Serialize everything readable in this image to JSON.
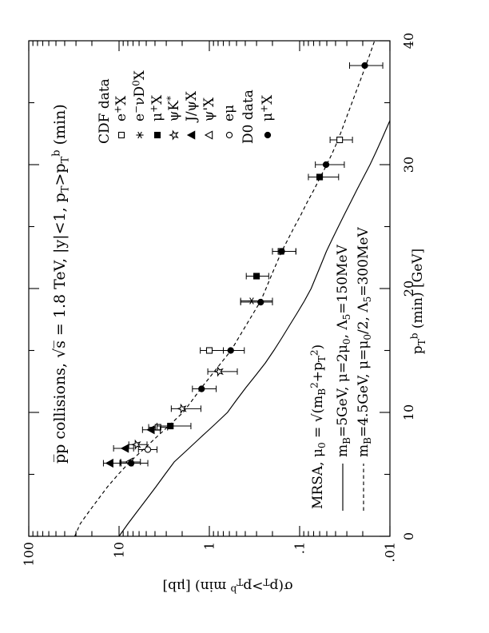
{
  "page": {
    "background": "#ffffff",
    "ink": "#000000"
  },
  "title_segs": [
    {
      "t": "p̅p collisions,  √s̅ = 1.8 TeV,  |y|<1,  p"
    },
    {
      "t": "T",
      "s": "sub"
    },
    {
      "t": ">p"
    },
    {
      "t": "T",
      "s": "sub"
    },
    {
      "t": "b",
      "s": "sup"
    },
    {
      "t": " (min)"
    }
  ],
  "axes": {
    "x_label_segs": [
      {
        "t": "p"
      },
      {
        "t": "T",
        "s": "sub"
      },
      {
        "t": "b",
        "s": "sup"
      },
      {
        "t": " (min) [GeV]"
      }
    ],
    "y_label_segs": [
      {
        "t": "σ(p"
      },
      {
        "t": "T",
        "s": "sub"
      },
      {
        "t": ">p"
      },
      {
        "t": "T",
        "s": "sub"
      },
      {
        "t": "b",
        "s": "sup"
      },
      {
        "t": " min)  [μb]"
      }
    ]
  },
  "legend_cdf": {
    "header": "CDF data",
    "items": [
      {
        "sym": "open-square",
        "segs": [
          {
            "t": "e"
          },
          {
            "t": "+",
            "s": "sup"
          },
          {
            "t": "X"
          }
        ]
      },
      {
        "sym": "asterisk",
        "segs": [
          {
            "t": "e"
          },
          {
            "t": "−",
            "s": "sup"
          },
          {
            "t": "νD"
          },
          {
            "t": "0",
            "s": "sup"
          },
          {
            "t": "X"
          }
        ]
      },
      {
        "sym": "filled-square",
        "segs": [
          {
            "t": "μ"
          },
          {
            "t": "+",
            "s": "sup"
          },
          {
            "t": "X"
          }
        ]
      },
      {
        "sym": "open-star",
        "segs": [
          {
            "t": "ψK"
          },
          {
            "t": "*",
            "s": "sup"
          }
        ]
      },
      {
        "sym": "filled-triangle",
        "segs": [
          {
            "t": "J/ψX"
          }
        ]
      },
      {
        "sym": "open-triangle",
        "segs": [
          {
            "t": "ψ'X"
          }
        ]
      },
      {
        "sym": "open-circle",
        "segs": [
          {
            "t": "eμ"
          }
        ]
      }
    ]
  },
  "legend_d0": {
    "header": "D0 data",
    "items": [
      {
        "sym": "filled-circle",
        "segs": [
          {
            "t": "μ"
          },
          {
            "t": "+",
            "s": "sup"
          },
          {
            "t": "X"
          }
        ]
      }
    ]
  },
  "theory": {
    "line1_segs": [
      {
        "t": "MRSA,  μ"
      },
      {
        "t": "0",
        "s": "sub"
      },
      {
        "t": " = √(m"
      },
      {
        "t": "B",
        "s": "sub"
      },
      {
        "t": "2",
        "s": "sup"
      },
      {
        "t": "+p"
      },
      {
        "t": "T",
        "s": "sub"
      },
      {
        "t": "2",
        "s": "sup"
      },
      {
        "t": ")"
      }
    ],
    "entries": [
      {
        "style": "solid",
        "segs": [
          {
            "t": "m"
          },
          {
            "t": "B",
            "s": "sub"
          },
          {
            "t": "=5GeV, μ=2μ"
          },
          {
            "t": "0",
            "s": "sub"
          },
          {
            "t": ", Λ"
          },
          {
            "t": "5",
            "s": "sub"
          },
          {
            "t": "=150MeV"
          }
        ]
      },
      {
        "style": "dashed",
        "segs": [
          {
            "t": "m"
          },
          {
            "t": "B",
            "s": "sub"
          },
          {
            "t": "=4.5GeV, μ=μ"
          },
          {
            "t": "0",
            "s": "sub"
          },
          {
            "t": "/2, Λ"
          },
          {
            "t": "5",
            "s": "sub"
          },
          {
            "t": "=300MeV"
          }
        ]
      }
    ]
  },
  "chart_data": {
    "type": "scatter",
    "title": "pbar-p collisions, sqrt(s) = 1.8 TeV, |y|<1, pT>pT^b(min)",
    "xlabel": "pT^b (min) [GeV]",
    "ylabel": "sigma(pT>pT^b min) [microbarn]",
    "xlim": [
      0,
      40
    ],
    "x_ticks": [
      0,
      10,
      20,
      30,
      40
    ],
    "x_minor_step": 5,
    "y_scale": "log",
    "ylim": [
      0.01,
      100
    ],
    "y_tick_labels": [
      "100",
      "10",
      "1",
      ".1",
      ".01"
    ],
    "grid": false,
    "series": [
      {
        "name": "CDF e+X",
        "symbol": "open-square",
        "points": [
          [
            8.8,
            3.7,
            2.9,
            4.7
          ],
          [
            15.0,
            1.0,
            0.7,
            1.26
          ],
          [
            23.0,
            0.161,
            0.11,
            0.2
          ],
          [
            32.0,
            0.036,
            0.026,
            0.046
          ]
        ]
      },
      {
        "name": "CDF e-nuD0X",
        "symbol": "asterisk",
        "points": [
          [
            19.0,
            0.34,
            0.2,
            0.45
          ]
        ]
      },
      {
        "name": "CDF mu+X",
        "symbol": "filled-square",
        "points": [
          [
            8.9,
            2.7,
            1.6,
            3.8
          ],
          [
            21.0,
            0.3,
            0.22,
            0.39
          ],
          [
            29.0,
            0.06,
            0.037,
            0.08
          ]
        ]
      },
      {
        "name": "CDF psiK*",
        "symbol": "open-star",
        "points": [
          [
            7.4,
            6.4,
            4.9,
            7.8
          ],
          [
            10.3,
            2.0,
            1.24,
            2.64
          ],
          [
            13.3,
            0.78,
            0.49,
            1.04
          ]
        ]
      },
      {
        "name": "CDF J/psiX",
        "symbol": "filled-triangle",
        "points": [
          [
            5.9,
            12.6,
            9.5,
            14.9
          ],
          [
            7.1,
            8.5,
            6.9,
            11.5
          ],
          [
            8.6,
            4.4,
            3.5,
            5.5
          ]
        ]
      },
      {
        "name": "CDF psi'X",
        "symbol": "open-triangle",
        "points": [
          [
            6.0,
            7.6,
            5.8,
            9.6
          ]
        ]
      },
      {
        "name": "CDF emu",
        "symbol": "open-circle",
        "points": [
          [
            7.0,
            4.8,
            3.8,
            6.1
          ]
        ]
      },
      {
        "name": "D0 mu+X",
        "symbol": "filled-circle",
        "points": [
          [
            5.9,
            7.35,
            4.8,
            9.8
          ],
          [
            11.9,
            1.22,
            0.84,
            1.54
          ],
          [
            15.0,
            0.58,
            0.41,
            0.7
          ],
          [
            18.9,
            0.27,
            0.2,
            0.45
          ],
          [
            23.0,
            0.158,
            0.11,
            0.2
          ],
          [
            30.0,
            0.051,
            0.032,
            0.067
          ],
          [
            38.0,
            0.019,
            0.012,
            0.028
          ]
        ]
      }
    ],
    "curves": [
      {
        "name": "mB=5GeV mu=2mu0 L5=150MeV",
        "style": "solid",
        "points": [
          [
            0,
            10
          ],
          [
            1,
            8.0
          ],
          [
            2,
            6.3
          ],
          [
            3,
            4.95
          ],
          [
            4,
            3.9
          ],
          [
            5,
            3.1
          ],
          [
            6,
            2.45
          ],
          [
            7,
            1.74
          ],
          [
            8,
            1.24
          ],
          [
            9,
            0.88
          ],
          [
            10,
            0.63
          ],
          [
            11,
            0.5
          ],
          [
            12,
            0.394
          ],
          [
            13,
            0.306
          ],
          [
            14,
            0.239
          ],
          [
            15,
            0.193
          ],
          [
            16,
            0.158
          ],
          [
            17,
            0.13
          ],
          [
            18,
            0.107
          ],
          [
            19,
            0.0885
          ],
          [
            20,
            0.0745
          ],
          [
            21,
            0.0655
          ],
          [
            22,
            0.0575
          ],
          [
            23,
            0.0505
          ],
          [
            24,
            0.0435
          ],
          [
            25,
            0.0372
          ],
          [
            26,
            0.0318
          ],
          [
            27,
            0.0271
          ],
          [
            28,
            0.0231
          ],
          [
            29,
            0.0196
          ],
          [
            30,
            0.0166
          ],
          [
            31,
            0.0143
          ],
          [
            32,
            0.0124
          ],
          [
            33,
            0.0108
          ],
          [
            34,
            0.0094
          ]
        ]
      },
      {
        "name": "mB=4.5GeV mu=mu0/2 L5=300MeV",
        "style": "dashed",
        "points": [
          [
            0,
            31
          ],
          [
            1,
            27
          ],
          [
            2,
            21.5
          ],
          [
            3,
            17
          ],
          [
            4,
            13.4
          ],
          [
            5,
            10.2
          ],
          [
            6,
            7.6
          ],
          [
            7,
            5.4
          ],
          [
            8,
            3.85
          ],
          [
            9,
            2.74
          ],
          [
            10,
            1.95
          ],
          [
            11,
            1.54
          ],
          [
            12,
            1.22
          ],
          [
            13,
            0.95
          ],
          [
            14,
            0.74
          ],
          [
            15,
            0.575
          ],
          [
            16,
            0.476
          ],
          [
            17,
            0.394
          ],
          [
            18,
            0.326
          ],
          [
            19,
            0.27
          ],
          [
            20,
            0.236
          ],
          [
            21,
            0.207
          ],
          [
            22,
            0.181
          ],
          [
            23,
            0.158
          ],
          [
            24,
            0.134
          ],
          [
            25,
            0.114
          ],
          [
            26,
            0.096
          ],
          [
            27,
            0.082
          ],
          [
            28,
            0.069
          ],
          [
            29,
            0.059
          ],
          [
            30,
            0.05
          ],
          [
            31,
            0.043
          ],
          [
            32,
            0.0375
          ],
          [
            33,
            0.0333
          ],
          [
            34,
            0.0296
          ],
          [
            35,
            0.0263
          ],
          [
            36,
            0.0234
          ],
          [
            37,
            0.0208
          ],
          [
            38,
            0.0185
          ],
          [
            39,
            0.0165
          ],
          [
            40,
            0.0148
          ]
        ]
      }
    ],
    "legend_position": "top-right-inside (CDF/D0 symbols); bottom-left-inside (theory curves)"
  }
}
